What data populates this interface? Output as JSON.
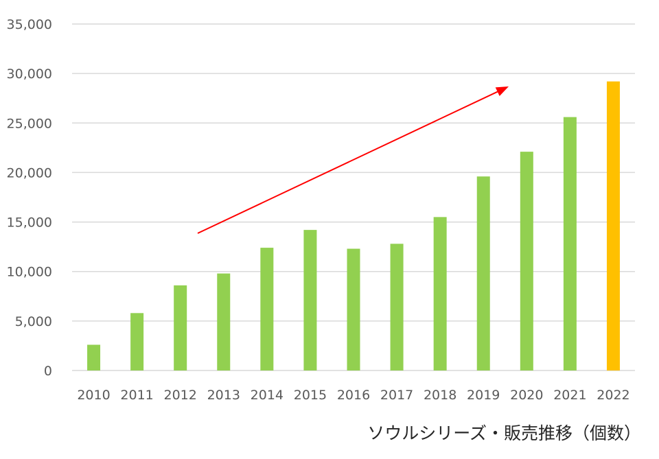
{
  "caption": "ソウルシリーズ・販売推移（個数）",
  "chart_data": {
    "type": "bar",
    "title": "",
    "xlabel": "",
    "ylabel": "",
    "categories": [
      "2010",
      "2011",
      "2012",
      "2013",
      "2014",
      "2015",
      "2016",
      "2017",
      "2018",
      "2019",
      "2020",
      "2021",
      "2022"
    ],
    "values": [
      2600,
      5800,
      8600,
      9800,
      12400,
      14200,
      12300,
      12800,
      15500,
      19600,
      22100,
      25600,
      29200
    ],
    "ylim": [
      0,
      35000
    ],
    "yticks": [
      0,
      5000,
      10000,
      15000,
      20000,
      25000,
      30000,
      35000
    ],
    "ytick_labels": [
      "0",
      "5,000",
      "10,000",
      "15,000",
      "20,000",
      "25,000",
      "30,000",
      "35,000"
    ],
    "grid": true,
    "legend": "none",
    "colors": {
      "bar": "#92D050",
      "highlight": "#FFC000",
      "highlight_category": "2022",
      "grid": "#d9d9d9",
      "trend_arrow": "#FF0000"
    },
    "annotations": [
      {
        "type": "trend-arrow",
        "direction": "up-right"
      }
    ]
  }
}
